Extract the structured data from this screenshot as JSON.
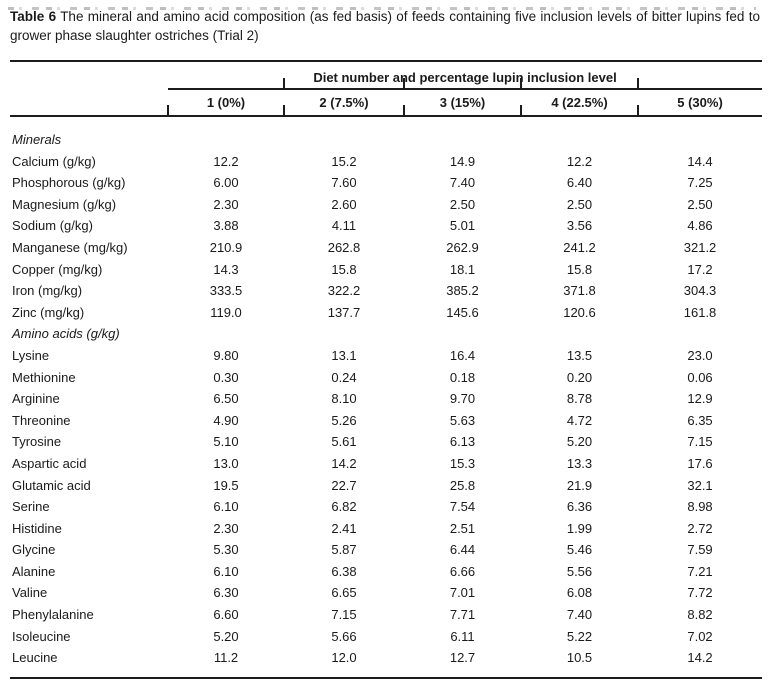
{
  "title": {
    "label": "Table 6",
    "text": "The mineral and amino acid composition (as fed basis) of feeds containing five inclusion levels of bitter lupins fed to grower phase slaughter ostriches (Trial 2)"
  },
  "table": {
    "group_header": "Diet number and percentage lupin inclusion level",
    "columns": [
      "1 (0%)",
      "2 (7.5%)",
      "3 (15%)",
      "4 (22.5%)",
      "5 (30%)"
    ],
    "sections": [
      {
        "name": "Minerals",
        "rows": [
          {
            "label": "Calcium (g/kg)",
            "values": [
              "12.2",
              "15.2",
              "14.9",
              "12.2",
              "14.4"
            ]
          },
          {
            "label": "Phosphorous (g/kg)",
            "values": [
              "6.00",
              "7.60",
              "7.40",
              "6.40",
              "7.25"
            ]
          },
          {
            "label": "Magnesium (g/kg)",
            "values": [
              "2.30",
              "2.60",
              "2.50",
              "2.50",
              "2.50"
            ]
          },
          {
            "label": "Sodium (g/kg)",
            "values": [
              "3.88",
              "4.11",
              "5.01",
              "3.56",
              "4.86"
            ]
          },
          {
            "label": "Manganese (mg/kg)",
            "values": [
              "210.9",
              "262.8",
              "262.9",
              "241.2",
              "321.2"
            ]
          },
          {
            "label": "Copper (mg/kg)",
            "values": [
              "14.3",
              "15.8",
              "18.1",
              "15.8",
              "17.2"
            ]
          },
          {
            "label": "Iron (mg/kg)",
            "values": [
              "333.5",
              "322.2",
              "385.2",
              "371.8",
              "304.3"
            ]
          },
          {
            "label": "Zinc (mg/kg)",
            "values": [
              "119.0",
              "137.7",
              "145.6",
              "120.6",
              "161.8"
            ]
          }
        ]
      },
      {
        "name": "Amino acids (g/kg)",
        "rows": [
          {
            "label": "Lysine",
            "values": [
              "9.80",
              "13.1",
              "16.4",
              "13.5",
              "23.0"
            ]
          },
          {
            "label": "Methionine",
            "values": [
              "0.30",
              "0.24",
              "0.18",
              "0.20",
              "0.06"
            ]
          },
          {
            "label": "Arginine",
            "values": [
              "6.50",
              "8.10",
              "9.70",
              "8.78",
              "12.9"
            ]
          },
          {
            "label": "Threonine",
            "values": [
              "4.90",
              "5.26",
              "5.63",
              "4.72",
              "6.35"
            ]
          },
          {
            "label": "Tyrosine",
            "values": [
              "5.10",
              "5.61",
              "6.13",
              "5.20",
              "7.15"
            ]
          },
          {
            "label": "Aspartic acid",
            "values": [
              "13.0",
              "14.2",
              "15.3",
              "13.3",
              "17.6"
            ]
          },
          {
            "label": "Glutamic acid",
            "values": [
              "19.5",
              "22.7",
              "25.8",
              "21.9",
              "32.1"
            ]
          },
          {
            "label": "Serine",
            "values": [
              "6.10",
              "6.82",
              "7.54",
              "6.36",
              "8.98"
            ]
          },
          {
            "label": "Histidine",
            "values": [
              "2.30",
              "2.41",
              "2.51",
              "1.99",
              "2.72"
            ]
          },
          {
            "label": "Glycine",
            "values": [
              "5.30",
              "5.87",
              "6.44",
              "5.46",
              "7.59"
            ]
          },
          {
            "label": "Alanine",
            "values": [
              "6.10",
              "6.38",
              "6.66",
              "5.56",
              "7.21"
            ]
          },
          {
            "label": "Valine",
            "values": [
              "6.30",
              "6.65",
              "7.01",
              "6.08",
              "7.72"
            ]
          },
          {
            "label": "Phenylalanine",
            "values": [
              "6.60",
              "7.15",
              "7.71",
              "7.40",
              "8.82"
            ]
          },
          {
            "label": "Isoleucine",
            "values": [
              "5.20",
              "5.66",
              "6.11",
              "5.22",
              "7.02"
            ]
          },
          {
            "label": "Leucine",
            "values": [
              "11.2",
              "12.0",
              "12.7",
              "10.5",
              "14.2"
            ]
          }
        ]
      }
    ]
  }
}
